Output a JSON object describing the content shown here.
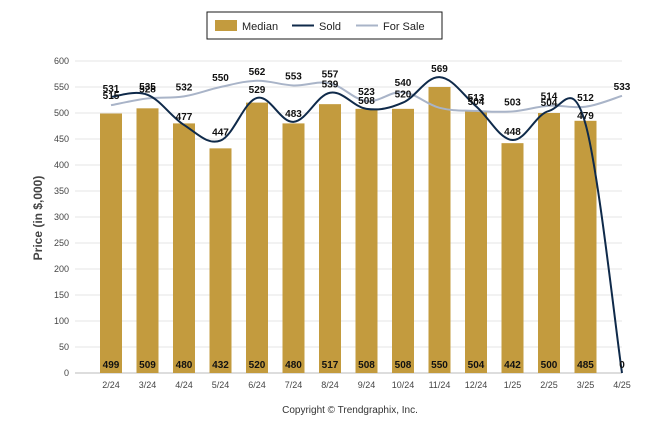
{
  "chart_data": {
    "type": "bar",
    "categories": [
      "2/24",
      "3/24",
      "4/24",
      "5/24",
      "6/24",
      "7/24",
      "8/24",
      "9/24",
      "10/24",
      "11/24",
      "12/24",
      "1/25",
      "2/25",
      "3/25",
      "4/25"
    ],
    "series": [
      {
        "name": "Median",
        "type": "bar",
        "values": [
          499,
          509,
          480,
          432,
          520,
          480,
          517,
          508,
          508,
          550,
          504,
          442,
          500,
          485,
          null
        ],
        "color": "#C39B3E"
      },
      {
        "name": "Sold",
        "type": "line",
        "values": [
          531,
          535,
          477,
          447,
          529,
          483,
          539,
          508,
          520,
          569,
          513,
          448,
          504,
          479,
          0
        ],
        "labels": [
          "531",
          "535",
          "477",
          "447",
          "529",
          "483",
          "539",
          "508",
          "520",
          "569",
          "513",
          "448",
          "504",
          "479",
          "0"
        ],
        "color": "#0F2A4A"
      },
      {
        "name": "For Sale",
        "type": "line",
        "values": [
          515,
          528,
          532,
          550,
          562,
          553,
          557,
          523,
          540,
          510,
          504,
          503,
          514,
          512,
          533
        ],
        "labels": [
          "515",
          "528",
          "532",
          "550",
          "562",
          "553",
          "557",
          "523",
          "540",
          "",
          "504",
          "503",
          "514",
          "512",
          "533"
        ],
        "color": "#A9B4C8"
      }
    ],
    "bar_labels": [
      "499",
      "509",
      "480",
      "432",
      "520",
      "480",
      "517",
      "508",
      "508",
      "550",
      "504",
      "442",
      "500",
      "485",
      "0"
    ],
    "ylabel": "Price (in $,000)",
    "xlabel": "",
    "ylim": [
      0,
      600
    ],
    "yticks": [
      0,
      50,
      100,
      150,
      200,
      250,
      300,
      350,
      400,
      450,
      500,
      550,
      600
    ],
    "grid": true,
    "legend": [
      "Median",
      "Sold",
      "For Sale"
    ],
    "legend_position": "top-center"
  },
  "footer": {
    "copyright": "Copyright © Trendgraphix, Inc."
  }
}
